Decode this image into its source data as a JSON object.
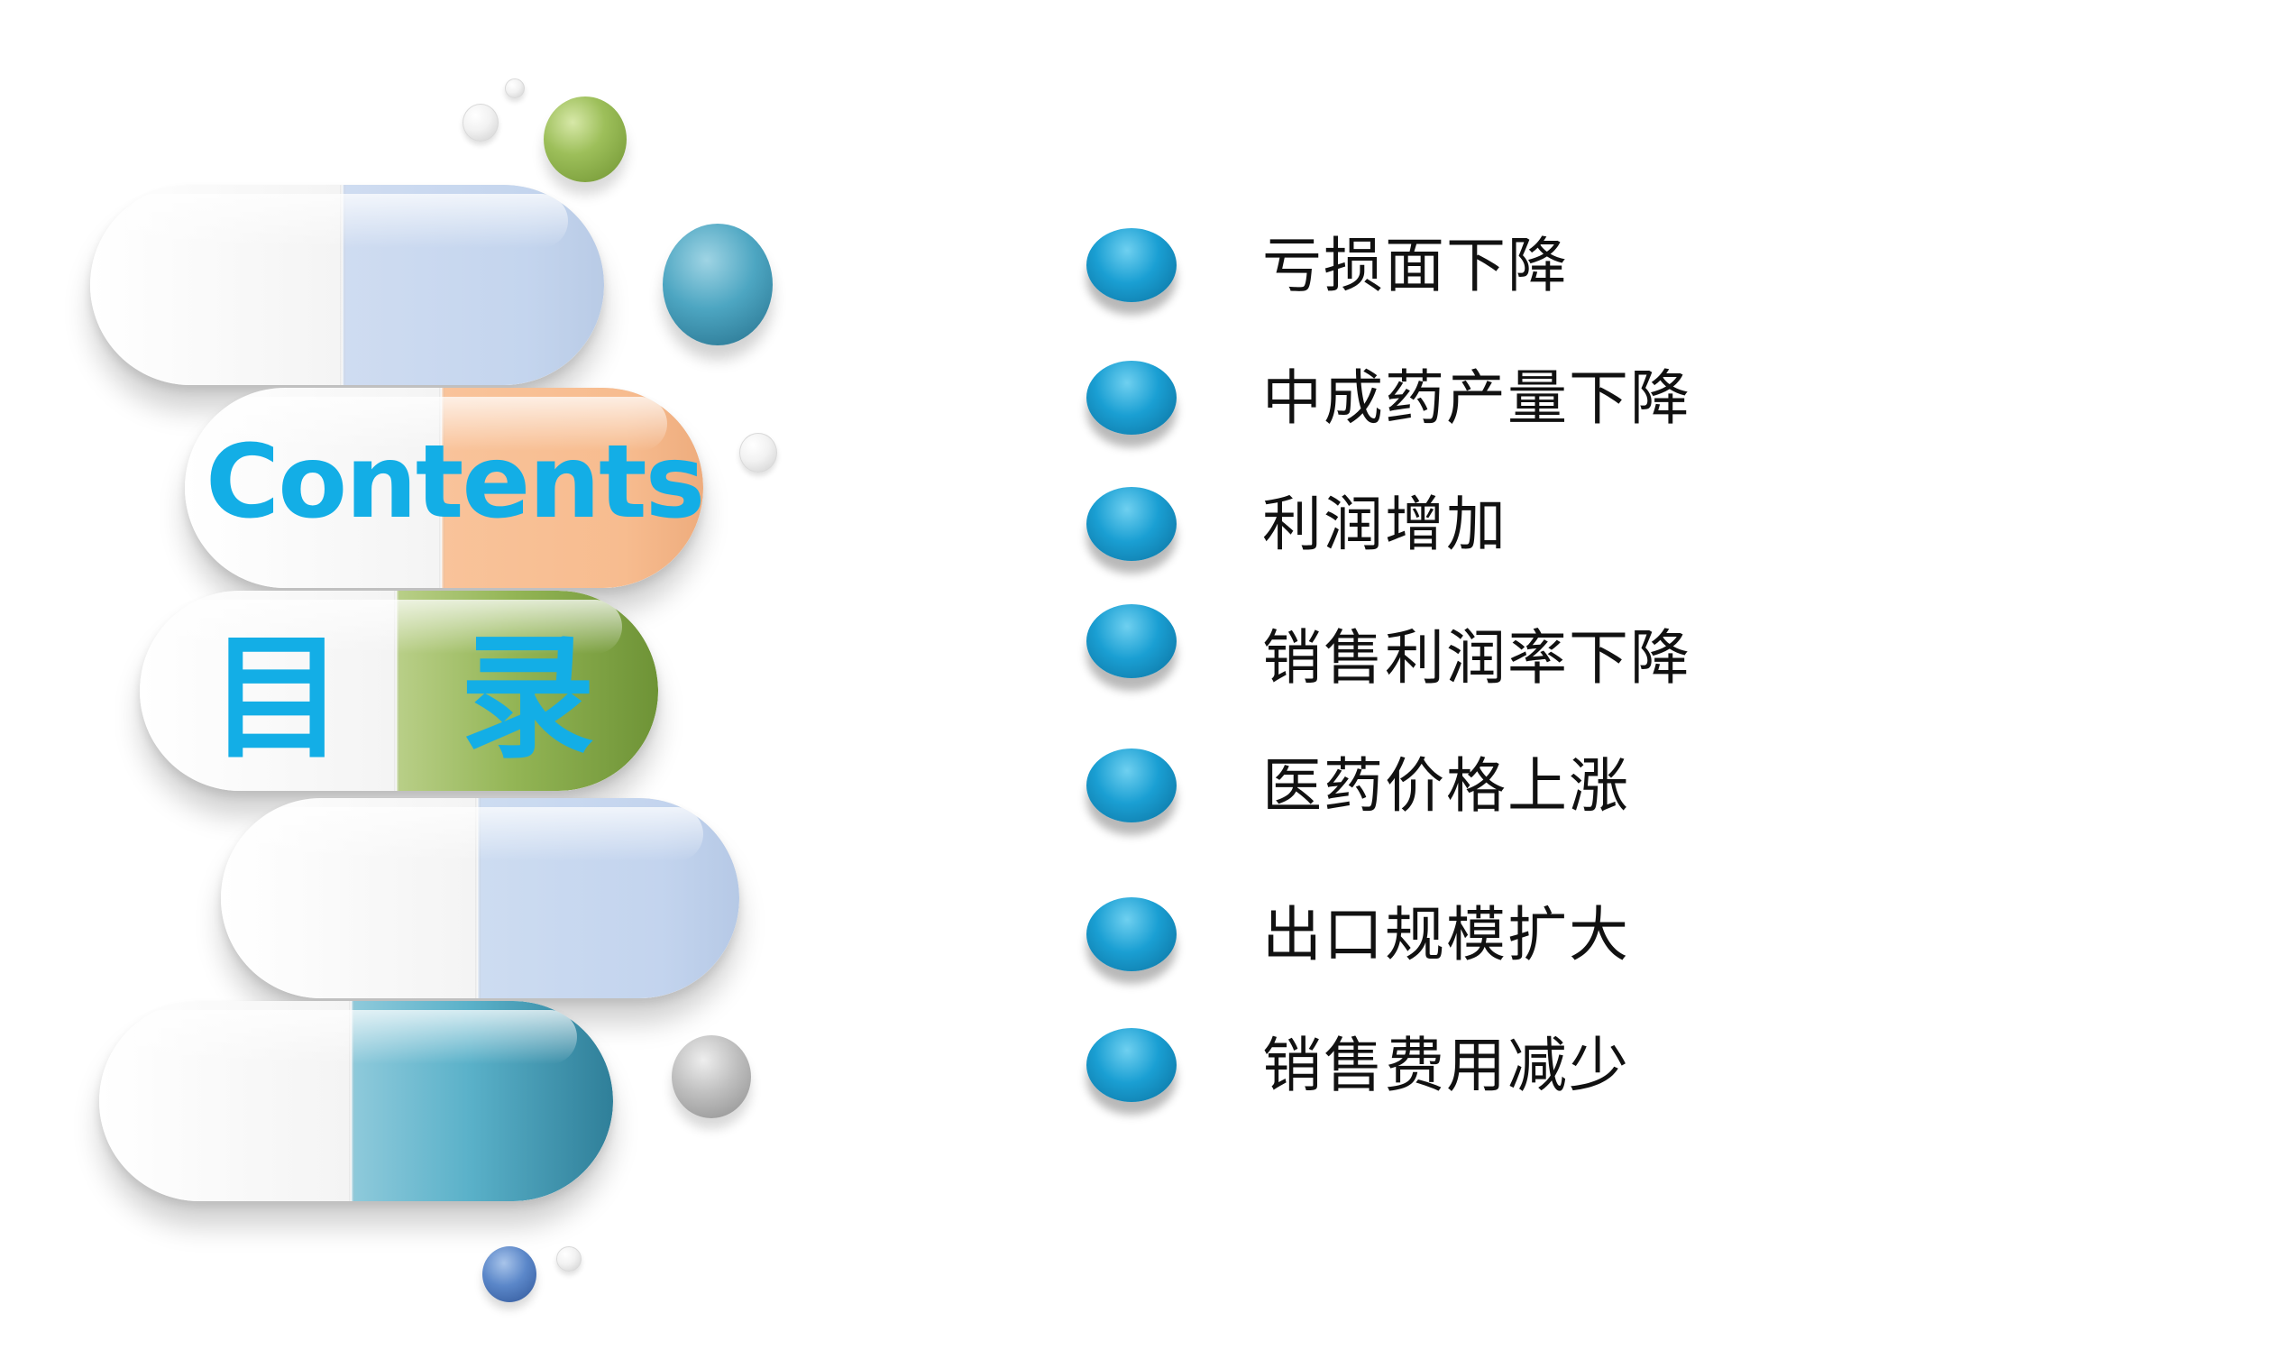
{
  "title": {
    "english": "Contents",
    "chinese": "目 录"
  },
  "colors": {
    "title_text": "#13aee6",
    "bullet": "#1a9fd3",
    "item_text": "#111111",
    "capsule_halves": [
      "#c4d5ee",
      "#f7bc8f",
      "#93b555",
      "#c3d4ee",
      "#5ab1c9"
    ]
  },
  "items": [
    {
      "label": "亏损面下降"
    },
    {
      "label": "中成药产量下降"
    },
    {
      "label": "利润增加"
    },
    {
      "label": "销售利润率下降"
    },
    {
      "label": "医药价格上涨"
    },
    {
      "label": "出口规模扩大"
    },
    {
      "label": "销售费用减少"
    }
  ]
}
